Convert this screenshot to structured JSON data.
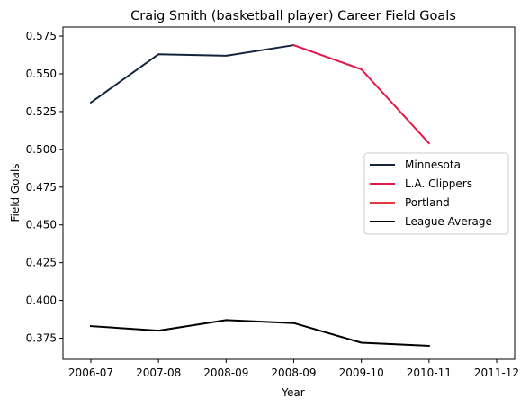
{
  "chart_data": {
    "type": "line",
    "title": "Craig Smith (basketball player) Career Field Goals",
    "xlabel": "Year",
    "ylabel": "Field Goals",
    "x_tick_labels": [
      "2006-07",
      "2007-08",
      "2008-09",
      "2008-09",
      "2009-10",
      "2010-11",
      "2011-12"
    ],
    "ylim": [
      0.361,
      0.581
    ],
    "y_ticks": [
      0.375,
      0.4,
      0.425,
      0.45,
      0.475,
      0.5,
      0.525,
      0.55,
      0.575
    ],
    "grid": false,
    "legend_position": "center-right",
    "series": [
      {
        "name": "Minnesota",
        "color": "#14233c",
        "points": [
          [
            0,
            0.531
          ],
          [
            1,
            0.563
          ],
          [
            2,
            0.562
          ],
          [
            3,
            0.569
          ]
        ]
      },
      {
        "name": "L.A. Clippers",
        "color": "#e4174a",
        "points": [
          [
            3,
            0.569
          ],
          [
            4,
            0.553
          ],
          [
            5,
            0.504
          ]
        ]
      },
      {
        "name": "Portland",
        "color": "#e03a3e",
        "points": []
      },
      {
        "name": "League Average",
        "color": "#000000",
        "points": [
          [
            0,
            0.383
          ],
          [
            1,
            0.38
          ],
          [
            2,
            0.387
          ],
          [
            3,
            0.385
          ],
          [
            4,
            0.372
          ],
          [
            5,
            0.37
          ]
        ]
      }
    ]
  }
}
